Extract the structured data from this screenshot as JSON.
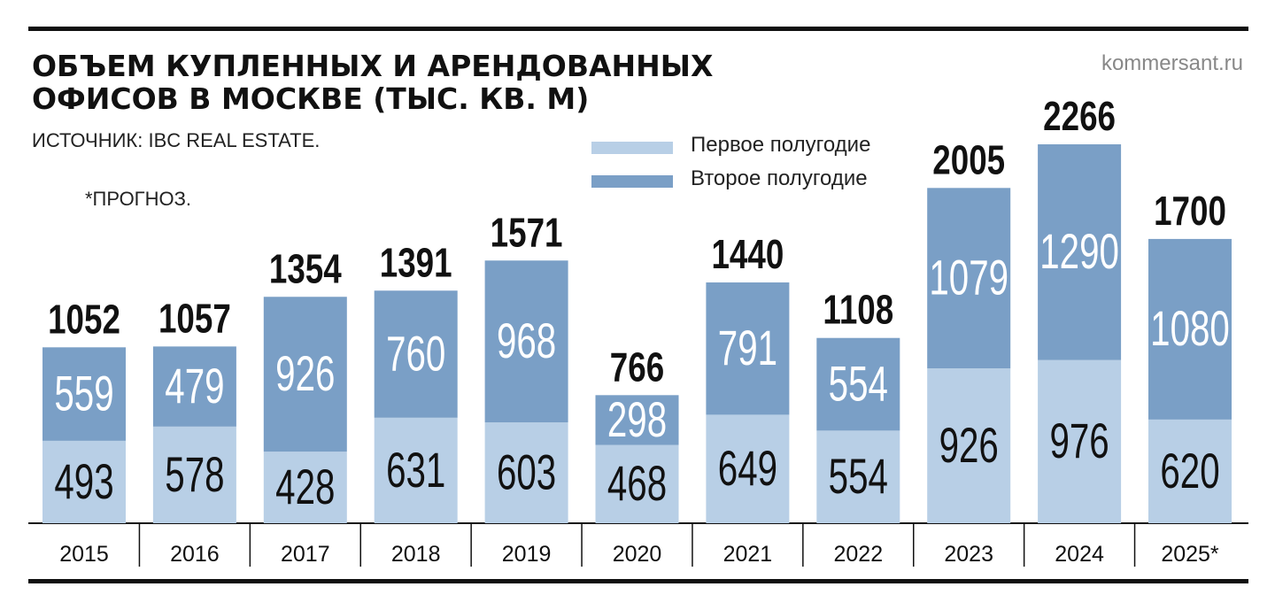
{
  "header": {
    "title_line1": "ОБЪЕМ КУПЛЕННЫХ И АРЕНДОВАННЫХ",
    "title_line2": "ОФИСОВ В МОСКВЕ (ТЫС. КВ. М)",
    "source": "ИСТОЧНИК: IBC REAL ESTATE.",
    "note": "*ПРОГНОЗ.",
    "site": "kommersant.ru"
  },
  "colors": {
    "first_half": "#b8cfe6",
    "second_half": "#7a9fc6",
    "text": "#111111"
  },
  "chart_data": {
    "type": "bar",
    "stacked": true,
    "title": "ОБЪЕМ КУПЛЕННЫХ И АРЕНДОВАННЫХ ОФИСОВ В МОСКВЕ (ТЫС. КВ. М)",
    "categories": [
      "2015",
      "2016",
      "2017",
      "2018",
      "2019",
      "2020",
      "2021",
      "2022",
      "2023",
      "2024",
      "2025*"
    ],
    "series": [
      {
        "name": "Первое полугодие",
        "values": [
          493,
          578,
          428,
          631,
          603,
          468,
          649,
          554,
          926,
          976,
          620
        ]
      },
      {
        "name": "Второе полугодие",
        "values": [
          559,
          479,
          926,
          760,
          968,
          298,
          791,
          554,
          1079,
          1290,
          1080
        ]
      }
    ],
    "totals": [
      1052,
      1057,
      1354,
      1391,
      1571,
      766,
      1440,
      1108,
      2005,
      2266,
      1700
    ],
    "legend_position": "top-center",
    "grid": false,
    "ylim": [
      0,
      2266
    ]
  }
}
